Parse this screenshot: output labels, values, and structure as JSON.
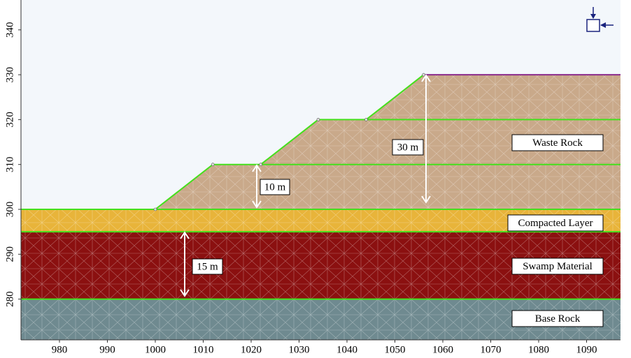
{
  "axes": {
    "x_ticks": [
      980,
      990,
      1000,
      1010,
      1020,
      1030,
      1040,
      1050,
      1060,
      1070,
      1080,
      1090
    ],
    "y_ticks": [
      280,
      290,
      300,
      310,
      320,
      330,
      340
    ]
  },
  "layers": [
    "Waste Rock",
    "Compacted Layer",
    "Swamp Material",
    "Base Rock"
  ],
  "dimensions": [
    "30 m",
    "10 m",
    "15 m"
  ]
}
